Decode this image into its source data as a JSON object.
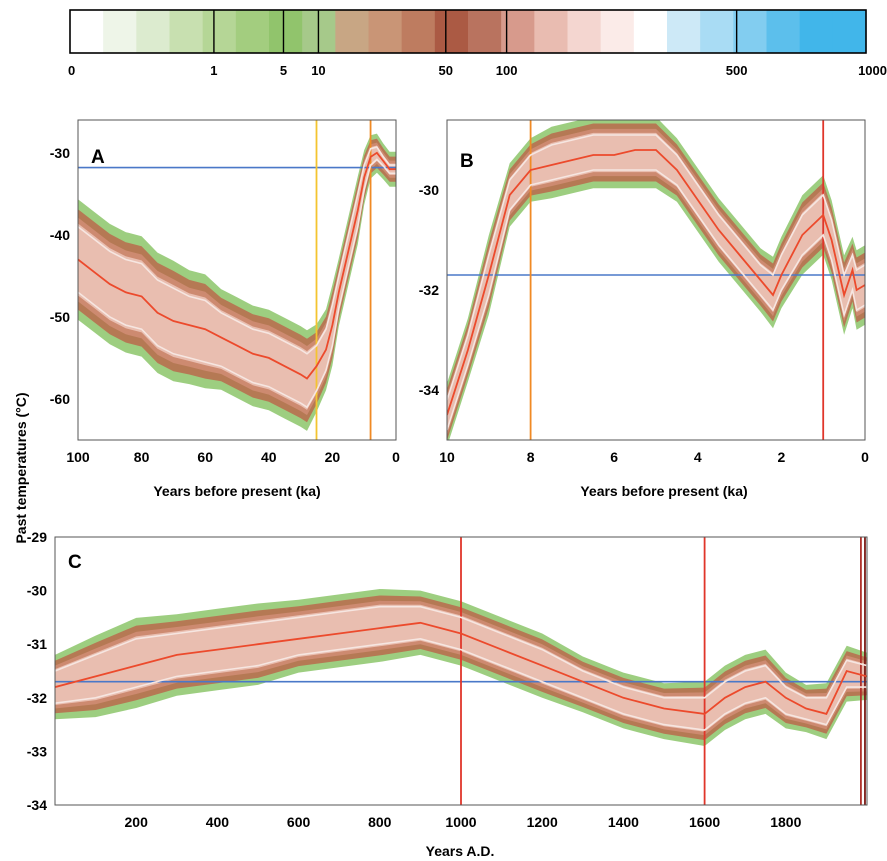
{
  "colorbar": {
    "ticks": [
      "0",
      "1",
      "5",
      "10",
      "50",
      "100",
      "500",
      "1000"
    ],
    "colors": [
      "#ffffff",
      "#eef5e8",
      "#dcebcf",
      "#c8e0b0",
      "#b5d696",
      "#a3cd7f",
      "#91c46c",
      "#a6c98a",
      "#c8a684",
      "#c99576",
      "#be7c60",
      "#ab5a44",
      "#b9735f",
      "#d79a8c",
      "#e9bcb1",
      "#f4d6d0",
      "#fbebe8",
      "#ffffff",
      "#cde9f7",
      "#a9dcf4",
      "#82cdf0",
      "#5cbfec",
      "#41b6ea",
      "#41b6ea"
    ],
    "dividers": [
      "1",
      "5",
      "10",
      "50",
      "100",
      "500"
    ]
  },
  "shared_ylabel": "Past temperatures (°C)",
  "chart_data": [
    {
      "panel": "A",
      "type": "line",
      "xlabel": "Years before present (ka)",
      "ylabel": "",
      "xlim": [
        100,
        0
      ],
      "ylim": [
        -65,
        -26
      ],
      "xticks": [
        "100",
        "80",
        "60",
        "40",
        "20",
        "0"
      ],
      "yticks": [
        "-30",
        "-40",
        "-50",
        "-60"
      ],
      "hline": -31.8,
      "vlines": [
        {
          "x": 25,
          "color": "#f4c430"
        },
        {
          "x": 8,
          "color": "#f08a24"
        }
      ],
      "series": [
        {
          "role": "median",
          "x": [
            100,
            95,
            90,
            85,
            80,
            75,
            70,
            65,
            60,
            55,
            50,
            45,
            40,
            35,
            30,
            28,
            25,
            22,
            20,
            18,
            15,
            12,
            10,
            8,
            6,
            4,
            2,
            0
          ],
          "y": [
            -43,
            -44.5,
            -46,
            -47,
            -47.5,
            -49.5,
            -50.5,
            -51,
            -51.5,
            -52.5,
            -53.5,
            -54.5,
            -55,
            -56,
            -57,
            -57.5,
            -56,
            -54,
            -51,
            -47,
            -42,
            -37,
            -33,
            -30.5,
            -30,
            -31,
            -32,
            -32
          ]
        },
        {
          "role": "upper",
          "x": [
            100,
            95,
            90,
            85,
            80,
            75,
            70,
            65,
            60,
            55,
            50,
            45,
            40,
            35,
            30,
            28,
            25,
            22,
            20,
            18,
            15,
            12,
            10,
            8,
            6,
            4,
            2,
            0
          ],
          "y": [
            -39,
            -40.5,
            -42,
            -43,
            -43.5,
            -45.5,
            -46.5,
            -47.5,
            -48,
            -49.5,
            -50.5,
            -51.5,
            -52,
            -53,
            -54,
            -54.5,
            -53.5,
            -51.5,
            -48.5,
            -45,
            -40,
            -35,
            -31.5,
            -29.5,
            -29.3,
            -30.5,
            -31.5,
            -31.5
          ]
        },
        {
          "role": "lower",
          "x": [
            100,
            95,
            90,
            85,
            80,
            75,
            70,
            65,
            60,
            55,
            50,
            45,
            40,
            35,
            30,
            28,
            25,
            22,
            20,
            18,
            15,
            12,
            10,
            8,
            6,
            4,
            2,
            0
          ],
          "y": [
            -47,
            -48.5,
            -50,
            -51,
            -51.5,
            -53.5,
            -54.5,
            -55,
            -55.5,
            -56,
            -57,
            -58,
            -58.5,
            -59.5,
            -60.5,
            -61,
            -59,
            -56.5,
            -53.5,
            -49,
            -44,
            -39,
            -34.5,
            -31.5,
            -30.8,
            -31.6,
            -32.5,
            -32.5
          ]
        }
      ]
    },
    {
      "panel": "B",
      "type": "line",
      "xlabel": "Years before present (ka)",
      "ylabel": "",
      "xlim": [
        10,
        0
      ],
      "ylim": [
        -35,
        -28.6
      ],
      "xticks": [
        "10",
        "8",
        "6",
        "4",
        "2",
        "0"
      ],
      "yticks": [
        "-30",
        "-32",
        "-34"
      ],
      "hline": -31.7,
      "vlines": [
        {
          "x": 8,
          "color": "#f08a24"
        },
        {
          "x": 1,
          "color": "#e0362a"
        }
      ],
      "series": [
        {
          "role": "median",
          "x": [
            10,
            9.5,
            9,
            8.5,
            8,
            7.5,
            7,
            6.5,
            6,
            5.5,
            5,
            4.5,
            4,
            3.5,
            3,
            2.5,
            2.2,
            2,
            1.5,
            1,
            0.8,
            0.5,
            0.3,
            0.2,
            0
          ],
          "y": [
            -34.5,
            -33.2,
            -31.7,
            -30.1,
            -29.6,
            -29.5,
            -29.4,
            -29.3,
            -29.3,
            -29.2,
            -29.2,
            -29.6,
            -30.2,
            -30.8,
            -31.3,
            -31.8,
            -32.1,
            -31.7,
            -30.9,
            -30.5,
            -31.0,
            -32.1,
            -31.6,
            -32.0,
            -31.9
          ]
        },
        {
          "role": "upper",
          "x": [
            10,
            9.5,
            9,
            8.5,
            8,
            7.5,
            7,
            6.5,
            6,
            5.5,
            5,
            4.5,
            4,
            3.5,
            3,
            2.5,
            2.2,
            2,
            1.5,
            1,
            0.8,
            0.5,
            0.3,
            0.2,
            0
          ],
          "y": [
            -34.2,
            -32.9,
            -31.3,
            -29.8,
            -29.3,
            -29.1,
            -29.0,
            -28.9,
            -28.9,
            -28.9,
            -28.9,
            -29.3,
            -29.9,
            -30.5,
            -31.0,
            -31.5,
            -31.7,
            -31.3,
            -30.5,
            -30.1,
            -30.6,
            -31.7,
            -31.3,
            -31.6,
            -31.5
          ]
        },
        {
          "role": "lower",
          "x": [
            10,
            9.5,
            9,
            8.5,
            8,
            7.5,
            7,
            6.5,
            6,
            5.5,
            5,
            4.5,
            4,
            3.5,
            3,
            2.5,
            2.2,
            2,
            1.5,
            1,
            0.8,
            0.5,
            0.3,
            0.2,
            0
          ],
          "y": [
            -34.8,
            -33.5,
            -32.1,
            -30.4,
            -29.9,
            -29.8,
            -29.7,
            -29.6,
            -29.6,
            -29.6,
            -29.6,
            -29.9,
            -30.5,
            -31.1,
            -31.6,
            -32.1,
            -32.4,
            -32.0,
            -31.3,
            -30.9,
            -31.4,
            -32.5,
            -32.0,
            -32.4,
            -32.3
          ]
        }
      ]
    },
    {
      "panel": "C",
      "type": "line",
      "xlabel": "Years A.D.",
      "ylabel": "",
      "xlim": [
        0,
        2000
      ],
      "ylim": [
        -34,
        -29
      ],
      "xticks": [
        "200",
        "400",
        "600",
        "800",
        "1000",
        "1200",
        "1400",
        "1600",
        "1800"
      ],
      "yticks": [
        "-29",
        "-30",
        "-31",
        "-32",
        "-33",
        "-34"
      ],
      "hline": -31.7,
      "vlines": [
        {
          "x": 1000,
          "color": "#e0362a"
        },
        {
          "x": 1600,
          "color": "#e0362a"
        },
        {
          "x": 1985,
          "color": "#b0302a"
        },
        {
          "x": 1995,
          "color": "#7a1b16"
        }
      ],
      "series": [
        {
          "role": "median",
          "x": [
            0,
            100,
            200,
            300,
            400,
            500,
            600,
            700,
            800,
            900,
            1000,
            1100,
            1200,
            1300,
            1400,
            1500,
            1600,
            1650,
            1700,
            1750,
            1800,
            1850,
            1900,
            1950,
            2000
          ],
          "y": [
            -31.8,
            -31.6,
            -31.4,
            -31.2,
            -31.1,
            -31.0,
            -30.9,
            -30.8,
            -30.7,
            -30.6,
            -30.8,
            -31.1,
            -31.4,
            -31.7,
            -32.0,
            -32.2,
            -32.3,
            -32.0,
            -31.8,
            -31.7,
            -32.0,
            -32.2,
            -32.3,
            -31.5,
            -31.6
          ]
        },
        {
          "role": "upper",
          "x": [
            0,
            100,
            200,
            300,
            400,
            500,
            600,
            700,
            800,
            900,
            1000,
            1100,
            1200,
            1300,
            1400,
            1500,
            1600,
            1650,
            1700,
            1750,
            1800,
            1850,
            1900,
            1950,
            2000
          ],
          "y": [
            -31.5,
            -31.2,
            -30.9,
            -30.8,
            -30.7,
            -30.6,
            -30.5,
            -30.4,
            -30.3,
            -30.3,
            -30.5,
            -30.8,
            -31.1,
            -31.5,
            -31.8,
            -32.0,
            -32.0,
            -31.7,
            -31.5,
            -31.4,
            -31.8,
            -32.0,
            -32.0,
            -31.3,
            -31.4
          ]
        },
        {
          "role": "lower",
          "x": [
            0,
            100,
            200,
            300,
            400,
            500,
            600,
            700,
            800,
            900,
            1000,
            1100,
            1200,
            1300,
            1400,
            1500,
            1600,
            1650,
            1700,
            1750,
            1800,
            1850,
            1900,
            1950,
            2000
          ],
          "y": [
            -32.1,
            -32.0,
            -31.8,
            -31.6,
            -31.5,
            -31.4,
            -31.2,
            -31.1,
            -31.0,
            -30.9,
            -31.1,
            -31.4,
            -31.7,
            -32.0,
            -32.3,
            -32.5,
            -32.6,
            -32.3,
            -32.1,
            -32.0,
            -32.3,
            -32.4,
            -32.5,
            -31.8,
            -31.8
          ]
        }
      ]
    }
  ]
}
